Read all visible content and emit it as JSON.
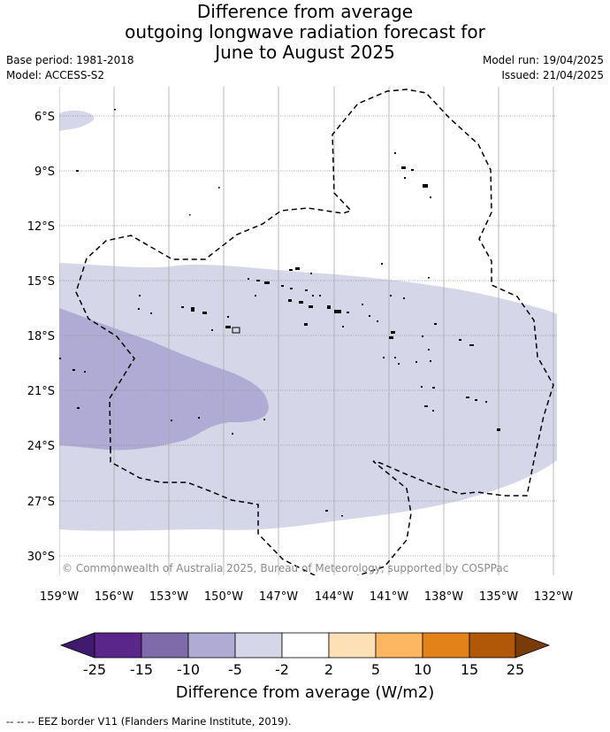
{
  "title": {
    "line1": "Difference from average",
    "line2": "outgoing longwave radiation forecast for",
    "line3": "June to August 2025"
  },
  "meta": {
    "base_period": "Base period: 1981-2018",
    "model": "Model: ACCESS-S2",
    "model_run": "Model run: 19/04/2025",
    "issued": "Issued: 21/04/2025"
  },
  "map": {
    "lon_labels": [
      "159°W",
      "156°W",
      "153°W",
      "150°W",
      "147°W",
      "144°W",
      "141°W",
      "138°W",
      "135°W",
      "132°W"
    ],
    "lat_labels": [
      "6°S",
      "9°S",
      "12°S",
      "15°S",
      "18°S",
      "21°S",
      "24°S",
      "27°S",
      "30°S"
    ],
    "copyright": "© Commonwealth of Australia 2025, Bureau of Meteorology, supported by COSPPac",
    "colors": {
      "band_-5_-2": "#d6d6e9",
      "band_-10_-5": "#b0abd4",
      "eez_line": "#000000",
      "grid": "#8c8c8c"
    }
  },
  "colorbar": {
    "ticks": [
      "-25",
      "-15",
      "-10",
      "-5",
      "-2",
      "2",
      "5",
      "10",
      "15",
      "25"
    ],
    "colors": [
      "#3f1a6e",
      "#5a2689",
      "#7d6ca9",
      "#b0abd4",
      "#d6d6e9",
      "#ffffff",
      "#fde0b6",
      "#fdb661",
      "#e4821a",
      "#b05808",
      "#7a3b06"
    ],
    "label": "Difference from average (W/m2)"
  },
  "footer": {
    "legend_text": "-- -- -- EEZ border V11 (Flanders Marine Institute, 2019)."
  }
}
